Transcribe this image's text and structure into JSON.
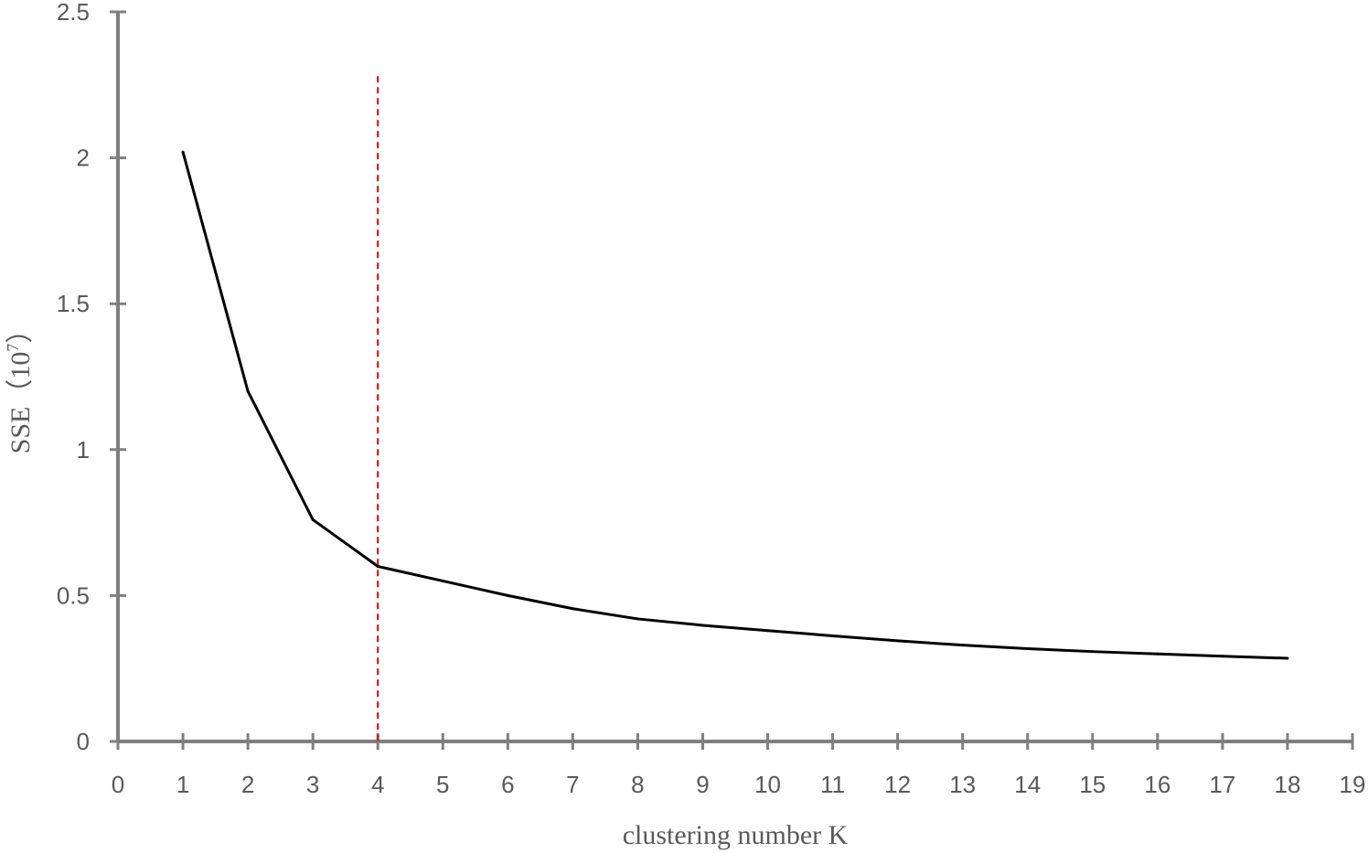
{
  "chart_data": {
    "type": "line",
    "title": "",
    "xlabel": "clustering number K",
    "ylabel": {
      "base": "SSE（10",
      "superscript": "7",
      "close": "）"
    },
    "xlim": [
      0,
      19
    ],
    "ylim": [
      0,
      2.5
    ],
    "x_ticks": [
      "0",
      "1",
      "2",
      "3",
      "4",
      "5",
      "6",
      "7",
      "8",
      "9",
      "10",
      "11",
      "12",
      "13",
      "14",
      "15",
      "16",
      "17",
      "18",
      "19"
    ],
    "y_ticks": [
      "0",
      "0.5",
      "1",
      "1.5",
      "2",
      "2.5"
    ],
    "grid": false,
    "legend": "none",
    "series": [
      {
        "color": "#000000",
        "x": [
          1,
          2,
          3,
          4,
          5,
          6,
          7,
          8,
          9,
          10,
          11,
          12,
          13,
          14,
          15,
          16,
          17,
          18
        ],
        "values": [
          2.02,
          1.2,
          0.76,
          0.6,
          0.55,
          0.5,
          0.455,
          0.42,
          0.398,
          0.38,
          0.362,
          0.345,
          0.33,
          0.318,
          0.308,
          0.3,
          0.292,
          0.285
        ]
      }
    ],
    "reference_line": {
      "orientation": "vertical",
      "x": 4,
      "y_range": [
        0,
        2.28
      ],
      "style": "dashed",
      "color": "#e00000"
    },
    "axis_color": "#7f7f7f"
  }
}
